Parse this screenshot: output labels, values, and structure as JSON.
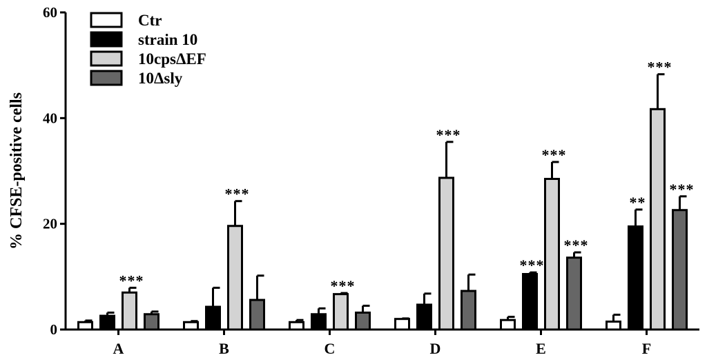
{
  "chart_data": {
    "type": "bar",
    "ylabel": "% CFSE-positive cells",
    "ylim": [
      0,
      60
    ],
    "yticks": [
      0,
      20,
      40,
      60
    ],
    "grid": false,
    "legend_position": "top-left",
    "categories": [
      "A",
      "B",
      "C",
      "D",
      "E",
      "F"
    ],
    "series": [
      {
        "name": "Ctr",
        "color": "#ffffff",
        "values": [
          1.4,
          1.4,
          1.4,
          2.0,
          1.8,
          1.5
        ],
        "errors": [
          0.3,
          0.2,
          0.4,
          0.1,
          0.6,
          1.3
        ],
        "significance": [
          "",
          "",
          "",
          "",
          "",
          ""
        ]
      },
      {
        "name": "strain 10",
        "color": "#000000",
        "values": [
          2.6,
          4.3,
          2.9,
          4.7,
          10.5,
          19.5
        ],
        "errors": [
          0.6,
          3.6,
          1.1,
          2.1,
          0.3,
          3.2
        ],
        "significance": [
          "",
          "",
          "",
          "",
          "***",
          "**"
        ]
      },
      {
        "name": "10cpsΔEF",
        "color": "#d3d3d3",
        "values": [
          7.0,
          19.6,
          6.7,
          28.7,
          28.5,
          41.7
        ],
        "errors": [
          0.9,
          4.7,
          0.2,
          6.8,
          3.2,
          6.6
        ],
        "significance": [
          "***",
          "***",
          "***",
          "***",
          "***",
          "***"
        ]
      },
      {
        "name": "10Δsly",
        "color": "#666666",
        "values": [
          2.9,
          5.6,
          3.2,
          7.3,
          13.6,
          22.6
        ],
        "errors": [
          0.5,
          4.6,
          1.3,
          3.1,
          1.0,
          2.6
        ],
        "significance": [
          "",
          "",
          "",
          "",
          "***",
          "***"
        ]
      }
    ]
  }
}
